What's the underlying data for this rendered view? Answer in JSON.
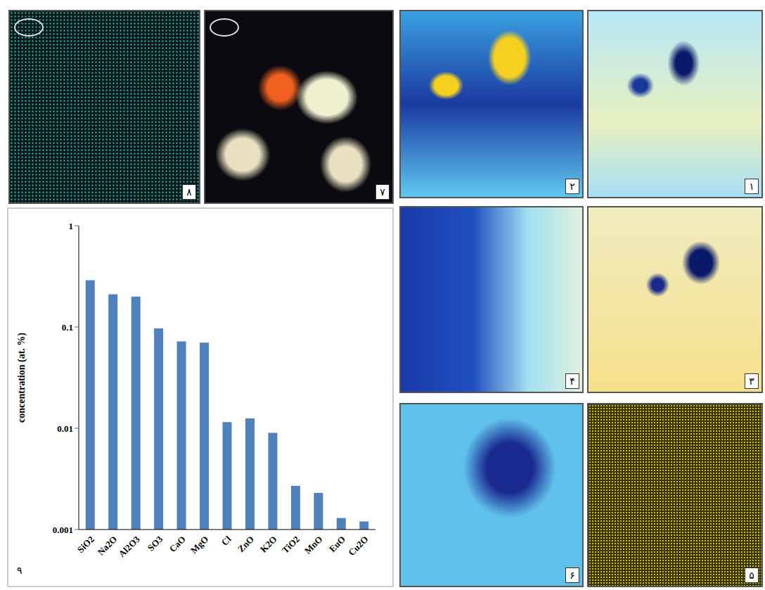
{
  "panels": [
    {
      "label": "۱"
    },
    {
      "label": "۲"
    },
    {
      "label": "۳"
    },
    {
      "label": "۴"
    },
    {
      "label": "۵"
    },
    {
      "label": "۶"
    },
    {
      "label": "۷"
    },
    {
      "label": "۸"
    }
  ],
  "chart_panel_label": "۹",
  "chart_data": {
    "type": "bar",
    "y_label": "concentration (at. %)",
    "categories": [
      "SiO2",
      "Na2O",
      "Al2O3",
      "SO3",
      "CaO",
      "MgO",
      "Cl",
      "ZnO",
      "K2O",
      "TiO2",
      "MnO",
      "EuO",
      "Cu2O"
    ],
    "values": [
      0.29,
      0.21,
      0.2,
      0.097,
      0.072,
      0.07,
      0.0115,
      0.0125,
      0.009,
      0.0027,
      0.0023,
      0.0013,
      0.0012
    ],
    "color": "#4f81bd",
    "log": "y",
    "ylim": [
      0.001,
      1
    ],
    "yticks": [
      0.001,
      0.01,
      0.1,
      1
    ],
    "grid": false
  }
}
